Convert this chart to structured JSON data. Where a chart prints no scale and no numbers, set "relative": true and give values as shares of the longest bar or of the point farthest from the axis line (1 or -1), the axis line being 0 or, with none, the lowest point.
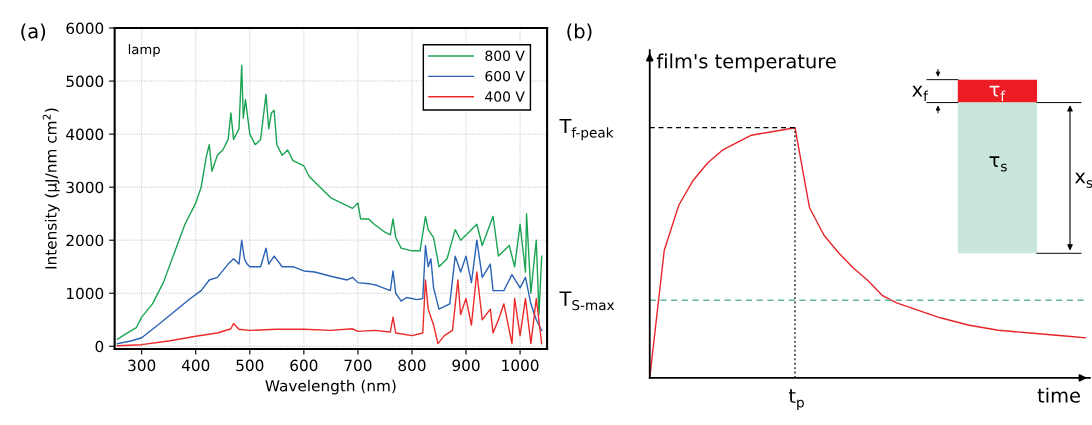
{
  "chart_data": [
    {
      "type": "line",
      "xlabel": "Wavelength (nm)",
      "ylabel": "Intensity (µJ/nm cm$^{2}$)",
      "xlim": [
        250,
        1050
      ],
      "ylim": [
        -50,
        6000
      ],
      "xticks": [
        300,
        400,
        500,
        600,
        700,
        800,
        900,
        1000
      ],
      "yticks": [
        0,
        1000,
        2000,
        3000,
        4000,
        5000,
        6000
      ],
      "grid": true,
      "legend": "top right",
      "annotations": [
        "(a)",
        "lamp"
      ],
      "series": [
        {
          "name": "800 V",
          "color": "#1aa352",
          "x": [
            255,
            270,
            290,
            300,
            320,
            340,
            360,
            380,
            400,
            410,
            420,
            425,
            430,
            440,
            450,
            460,
            465,
            470,
            480,
            485,
            488,
            492,
            500,
            510,
            520,
            530,
            535,
            540,
            545,
            550,
            560,
            570,
            580,
            600,
            610,
            630,
            650,
            670,
            690,
            700,
            705,
            720,
            730,
            750,
            760,
            765,
            770,
            780,
            800,
            815,
            825,
            830,
            840,
            850,
            865,
            880,
            890,
            900,
            920,
            930,
            950,
            960,
            980,
            990,
            1000,
            1010,
            1012,
            1020,
            1030,
            1035,
            1040
          ],
          "values": [
            130,
            230,
            350,
            550,
            800,
            1200,
            1750,
            2300,
            2700,
            3000,
            3600,
            3800,
            3300,
            3600,
            3700,
            3900,
            4400,
            3900,
            4100,
            5300,
            4300,
            4650,
            4000,
            3800,
            3900,
            4750,
            4100,
            4400,
            4450,
            3800,
            3600,
            3700,
            3500,
            3400,
            3200,
            3000,
            2800,
            2700,
            2600,
            2700,
            2400,
            2400,
            2300,
            2150,
            2100,
            2400,
            2050,
            1850,
            1800,
            1800,
            2450,
            2200,
            2050,
            1500,
            1650,
            2200,
            2000,
            2100,
            2300,
            1900,
            2450,
            1700,
            1900,
            1500,
            2300,
            1400,
            2500,
            1000,
            2000,
            600,
            1700
          ]
        },
        {
          "name": "600 V",
          "color": "#2a62b5",
          "x": [
            255,
            280,
            300,
            330,
            360,
            390,
            410,
            425,
            440,
            460,
            470,
            480,
            485,
            490,
            495,
            500,
            520,
            530,
            535,
            545,
            560,
            580,
            600,
            620,
            650,
            680,
            690,
            700,
            720,
            735,
            760,
            765,
            770,
            780,
            790,
            810,
            820,
            825,
            830,
            835,
            840,
            850,
            870,
            880,
            890,
            900,
            910,
            920,
            930,
            945,
            950,
            970,
            985,
            1000,
            1010,
            1020,
            1030,
            1040
          ],
          "values": [
            50,
            100,
            160,
            400,
            650,
            900,
            1050,
            1250,
            1300,
            1550,
            1650,
            1550,
            2000,
            1650,
            1550,
            1500,
            1500,
            1850,
            1550,
            1700,
            1500,
            1500,
            1420,
            1400,
            1320,
            1250,
            1300,
            1200,
            1180,
            1150,
            1050,
            1420,
            1000,
            850,
            920,
            880,
            900,
            1900,
            1500,
            1650,
            1100,
            700,
            800,
            1700,
            1400,
            1700,
            1200,
            2000,
            1300,
            1550,
            1050,
            1050,
            1350,
            1100,
            1300,
            800,
            500,
            300
          ]
        },
        {
          "name": "400 V",
          "color": "#ec2a2a",
          "x": [
            255,
            300,
            350,
            400,
            440,
            465,
            470,
            480,
            500,
            550,
            600,
            650,
            690,
            700,
            730,
            760,
            765,
            770,
            800,
            820,
            825,
            830,
            840,
            848,
            860,
            875,
            885,
            890,
            900,
            910,
            920,
            930,
            945,
            950,
            960,
            970,
            980,
            985,
            990,
            1000,
            1010,
            1020,
            1030,
            1040
          ],
          "values": [
            10,
            30,
            100,
            190,
            250,
            330,
            430,
            320,
            300,
            320,
            320,
            300,
            330,
            280,
            300,
            270,
            550,
            250,
            200,
            250,
            1250,
            700,
            400,
            50,
            200,
            300,
            1250,
            600,
            900,
            400,
            1400,
            500,
            700,
            250,
            500,
            800,
            300,
            50,
            900,
            200,
            900,
            50,
            900,
            50
          ]
        }
      ]
    },
    {
      "type": "line",
      "relative": true,
      "xlabel": "time",
      "ylabel": "film's temperature",
      "annotations": [
        "(b)",
        "x$_{f}$",
        "τ$_{f}$",
        "τ$_{s}$",
        "x$_{s}$",
        "t$_{p}$"
      ],
      "categories": [
        null,
        null,
        null,
        null,
        null,
        null,
        null,
        null,
        null,
        null,
        null,
        null,
        null,
        null,
        null,
        null,
        null,
        null,
        null,
        null,
        null,
        null,
        null,
        null,
        null,
        null,
        null,
        null,
        null,
        null,
        null
      ],
      "series": [
        {
          "color": "#e8242a",
          "values": [
            0,
            0.51,
            0.69,
            0.79,
            0.86,
            0.91,
            0.94,
            0.97,
            0.98,
            0.99,
            1,
            0.68,
            0.57,
            0.5,
            0.44,
            0.39,
            0.33,
            0.3,
            0.28,
            0.26,
            0.24,
            0.225,
            0.21,
            0.2,
            0.19,
            0.185,
            0.18,
            0.175,
            0.17,
            0.165,
            0.16
          ]
        }
      ],
      "ref_lines": [
        {
          "axis": "y",
          "value": 1,
          "label": "T$_{f-peak}$",
          "color": "#000000",
          "line_style": "dashed"
        },
        {
          "axis": "y",
          "value": 0.31,
          "label": "T$_{S-max}$",
          "color": "#5fb89a",
          "line_style": "dashed"
        }
      ]
    }
  ]
}
